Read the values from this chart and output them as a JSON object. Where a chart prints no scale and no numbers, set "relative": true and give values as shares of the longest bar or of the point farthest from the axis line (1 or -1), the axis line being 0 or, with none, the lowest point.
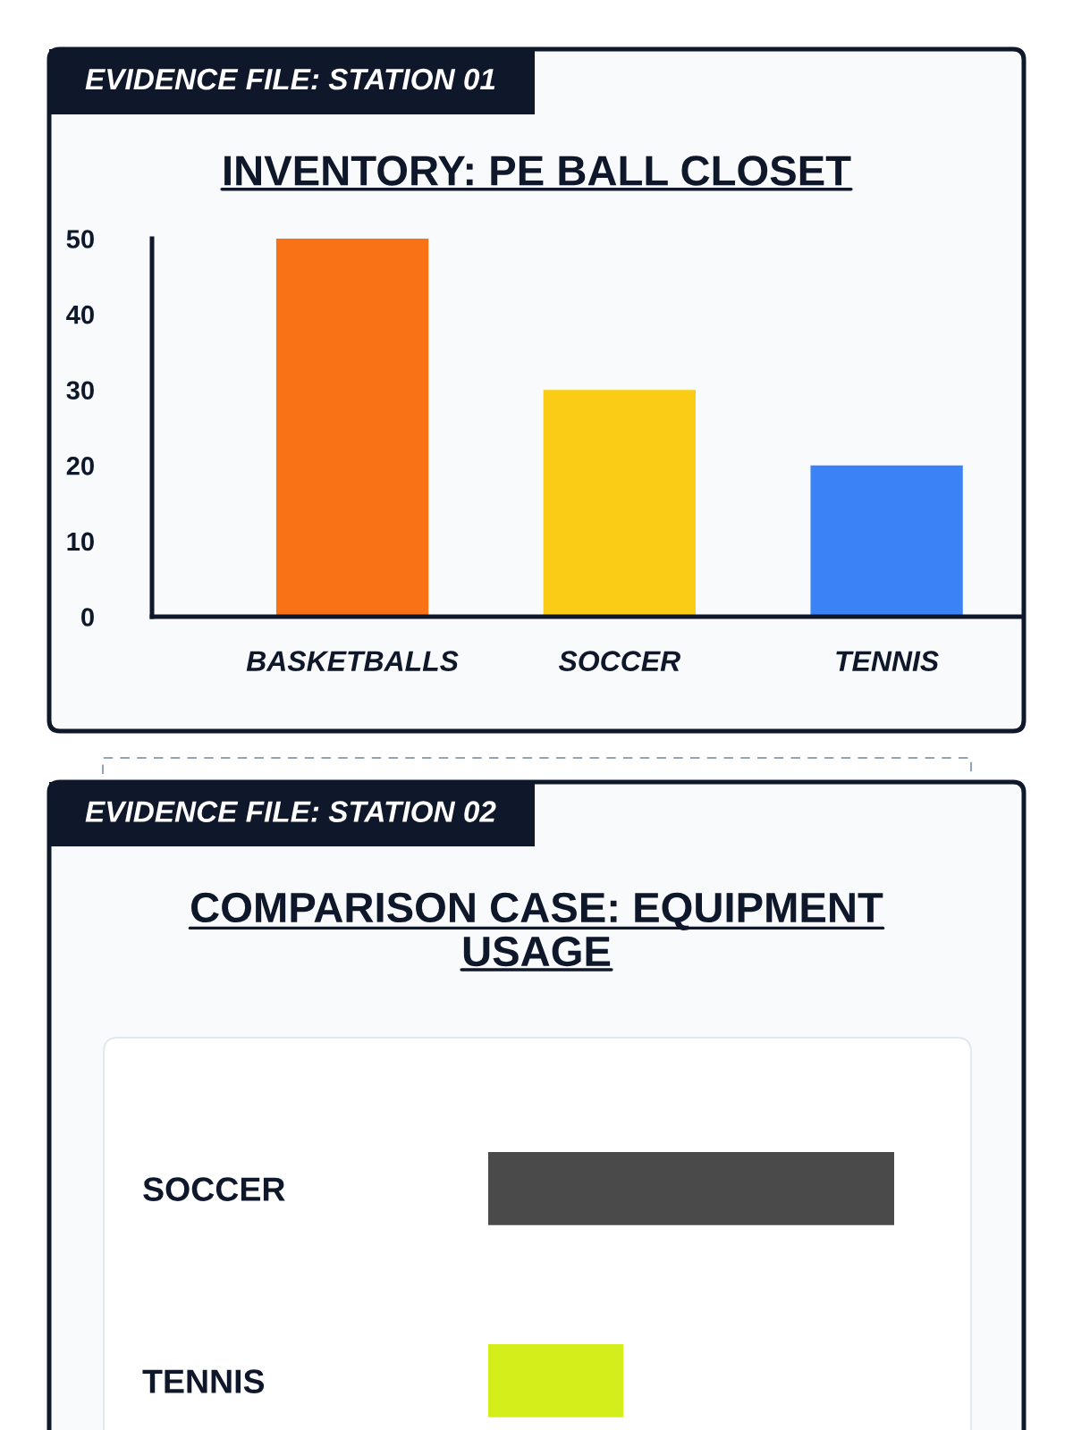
{
  "chart_data": [
    {
      "type": "bar",
      "title": "INVENTORY: PE BALL CLOSET",
      "annotations": [
        "EVIDENCE FILE: STATION 01"
      ],
      "categories": [
        "BASKETBALLS",
        "SOCCER",
        "TENNIS"
      ],
      "values": [
        50,
        30,
        20
      ],
      "colors": [
        "#f97316",
        "#facc15",
        "#3b82f6"
      ],
      "ylim": [
        0,
        50
      ],
      "yticks": [
        0,
        10,
        20,
        30,
        40,
        50
      ]
    },
    {
      "type": "bar",
      "orientation": "horizontal",
      "relative": true,
      "title": "COMPARISON CASE: EQUIPMENT USAGE",
      "annotations": [
        "EVIDENCE FILE: STATION 02"
      ],
      "categories": [
        "SOCCER",
        "TENNIS"
      ],
      "values": [
        1,
        0.333
      ],
      "colors": [
        "#4a4a4a",
        "#d4ee1c"
      ]
    }
  ]
}
